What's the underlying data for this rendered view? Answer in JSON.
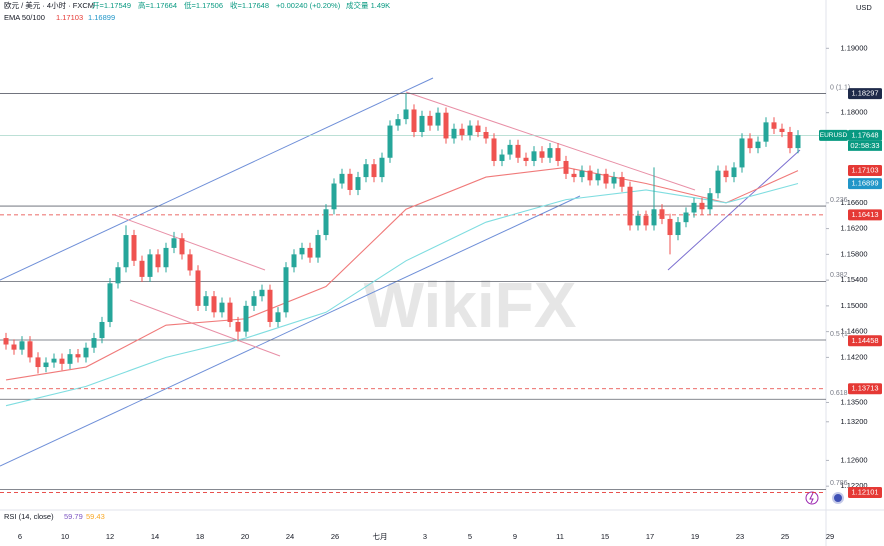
{
  "header": {
    "symbol": "欧元 / 美元 · 4小时 · FXCM",
    "open": "开=1.17549",
    "high": "高=1.17664",
    "low": "低=1.17506",
    "close": "收=1.17648",
    "change": "+0.00240 (+0.20%)",
    "volume": "成交量 1.49K",
    "ema_label": "EMA 50/100",
    "ema50_value": "1.17103",
    "ema100_value": "1.16899",
    "rsi_label": "RSI (14, close)",
    "rsi_value": "59.79",
    "rsi_ma_value": "59.43",
    "watermark": "WikiFX"
  },
  "chart_data": {
    "type": "candlestick",
    "currency": "USD",
    "symbol_tag": "EURUSD",
    "countdown": "02:58:33",
    "categories": [
      "6",
      "10",
      "12",
      "14",
      "18",
      "20",
      "24",
      "26",
      "七月",
      "3",
      "5",
      "9",
      "11",
      "15",
      "17",
      "19",
      "23",
      "25",
      "29"
    ],
    "up_color": "#26a69a",
    "down_color": "#ef5350",
    "grid": false,
    "ylim": [
      1.1183,
      1.1975
    ],
    "yticks": [
      {
        "value": 1.19,
        "label": "1.19000"
      },
      {
        "value": 1.18,
        "label": "1.18000"
      },
      {
        "value": 1.166,
        "label": "1.16600"
      },
      {
        "value": 1.162,
        "label": "1.16200"
      },
      {
        "value": 1.158,
        "label": "1.15800"
      },
      {
        "value": 1.154,
        "label": "1.15400"
      },
      {
        "value": 1.15,
        "label": "1.15000"
      },
      {
        "value": 1.146,
        "label": "1.14600"
      },
      {
        "value": 1.142,
        "label": "1.14200"
      },
      {
        "value": 1.135,
        "label": "1.13500"
      },
      {
        "value": 1.132,
        "label": "1.13200"
      },
      {
        "value": 1.126,
        "label": "1.12600"
      },
      {
        "value": 1.122,
        "label": "1.12200"
      }
    ],
    "open": [
      1.145,
      1.144,
      1.1432,
      1.1445,
      1.142,
      1.1405,
      1.1412,
      1.1418,
      1.141,
      1.1425,
      1.142,
      1.1435,
      1.145,
      1.1475,
      1.1535,
      1.156,
      1.161,
      1.157,
      1.1545,
      1.158,
      1.156,
      1.159,
      1.1605,
      1.158,
      1.1555,
      1.15,
      1.1515,
      1.149,
      1.1505,
      1.1475,
      1.146,
      1.15,
      1.1515,
      1.1525,
      1.1475,
      1.149,
      1.156,
      1.158,
      1.159,
      1.1575,
      1.161,
      1.165,
      1.169,
      1.1705,
      1.168,
      1.17,
      1.172,
      1.17,
      1.173,
      1.178,
      1.179,
      1.1805,
      1.177,
      1.1795,
      1.178,
      1.18,
      1.176,
      1.1775,
      1.1765,
      1.178,
      1.177,
      1.176,
      1.1725,
      1.1735,
      1.175,
      1.173,
      1.1725,
      1.174,
      1.173,
      1.1745,
      1.1725,
      1.1705,
      1.17,
      1.171,
      1.1695,
      1.1705,
      1.169,
      1.17,
      1.1685,
      1.1625,
      1.164,
      1.1625,
      1.165,
      1.1635,
      1.161,
      1.163,
      1.1645,
      1.166,
      1.165,
      1.1675,
      1.171,
      1.17,
      1.1715,
      1.176,
      1.1745,
      1.1755,
      1.1785,
      1.1775,
      1.177,
      1.1745
    ],
    "high": [
      1.1458,
      1.1448,
      1.1453,
      1.1453,
      1.1428,
      1.142,
      1.1426,
      1.1426,
      1.1433,
      1.1433,
      1.1443,
      1.1458,
      1.1483,
      1.1543,
      1.1568,
      1.1625,
      1.1618,
      1.1578,
      1.1588,
      1.1588,
      1.1598,
      1.1615,
      1.1613,
      1.1588,
      1.1563,
      1.1523,
      1.1523,
      1.1513,
      1.1513,
      1.1483,
      1.1508,
      1.1523,
      1.1533,
      1.1533,
      1.1498,
      1.1568,
      1.1588,
      1.1598,
      1.1598,
      1.1618,
      1.1658,
      1.1698,
      1.1713,
      1.1713,
      1.1708,
      1.1728,
      1.1728,
      1.1738,
      1.1788,
      1.1798,
      1.183,
      1.1813,
      1.1803,
      1.1803,
      1.1808,
      1.1808,
      1.1783,
      1.1783,
      1.1788,
      1.1788,
      1.1778,
      1.1768,
      1.1743,
      1.1758,
      1.1758,
      1.1738,
      1.1748,
      1.1748,
      1.1753,
      1.1753,
      1.1733,
      1.1713,
      1.1718,
      1.1718,
      1.1713,
      1.1713,
      1.1708,
      1.1708,
      1.1693,
      1.1648,
      1.1648,
      1.1715,
      1.1658,
      1.1643,
      1.1638,
      1.1653,
      1.1668,
      1.1668,
      1.1683,
      1.1718,
      1.1718,
      1.1723,
      1.1768,
      1.1768,
      1.1763,
      1.1793,
      1.1793,
      1.1783,
      1.1778,
      1.1773
    ],
    "low": [
      1.1432,
      1.1424,
      1.1424,
      1.1412,
      1.1395,
      1.1397,
      1.1404,
      1.14,
      1.1402,
      1.1412,
      1.1412,
      1.1427,
      1.1442,
      1.1467,
      1.1527,
      1.1552,
      1.1562,
      1.1537,
      1.1537,
      1.1552,
      1.1552,
      1.1582,
      1.1572,
      1.1547,
      1.1492,
      1.1492,
      1.1482,
      1.1482,
      1.1467,
      1.1445,
      1.1452,
      1.1492,
      1.1507,
      1.1467,
      1.1467,
      1.1482,
      1.1552,
      1.1572,
      1.1567,
      1.1567,
      1.1602,
      1.1642,
      1.1682,
      1.1672,
      1.1672,
      1.1692,
      1.1692,
      1.1692,
      1.1722,
      1.1772,
      1.1782,
      1.1762,
      1.1762,
      1.1772,
      1.1772,
      1.1752,
      1.1752,
      1.1757,
      1.1757,
      1.1762,
      1.1752,
      1.1717,
      1.1717,
      1.1727,
      1.1722,
      1.1717,
      1.1717,
      1.1722,
      1.1722,
      1.1717,
      1.1697,
      1.1692,
      1.1692,
      1.1687,
      1.1687,
      1.1682,
      1.1682,
      1.1677,
      1.1617,
      1.1617,
      1.1617,
      1.1617,
      1.1627,
      1.158,
      1.1602,
      1.1622,
      1.1637,
      1.1642,
      1.1642,
      1.1667,
      1.1692,
      1.1692,
      1.1707,
      1.1737,
      1.1737,
      1.1747,
      1.1767,
      1.1762,
      1.1737,
      1.1737
    ],
    "close": [
      1.144,
      1.1432,
      1.1445,
      1.142,
      1.1405,
      1.1412,
      1.1418,
      1.141,
      1.1425,
      1.142,
      1.1435,
      1.145,
      1.1475,
      1.1535,
      1.156,
      1.161,
      1.157,
      1.1545,
      1.158,
      1.156,
      1.159,
      1.1605,
      1.158,
      1.1555,
      1.15,
      1.1515,
      1.149,
      1.1505,
      1.1475,
      1.146,
      1.15,
      1.1515,
      1.1525,
      1.1475,
      1.149,
      1.156,
      1.158,
      1.159,
      1.1575,
      1.161,
      1.165,
      1.169,
      1.1705,
      1.168,
      1.17,
      1.172,
      1.17,
      1.173,
      1.178,
      1.179,
      1.1805,
      1.177,
      1.1795,
      1.178,
      1.18,
      1.176,
      1.1775,
      1.1765,
      1.178,
      1.177,
      1.176,
      1.1725,
      1.1735,
      1.175,
      1.173,
      1.1725,
      1.174,
      1.173,
      1.1745,
      1.1725,
      1.1705,
      1.17,
      1.171,
      1.1695,
      1.1705,
      1.169,
      1.17,
      1.1685,
      1.1625,
      1.164,
      1.1625,
      1.165,
      1.1635,
      1.161,
      1.163,
      1.1645,
      1.166,
      1.165,
      1.1675,
      1.171,
      1.17,
      1.1715,
      1.176,
      1.1745,
      1.1755,
      1.1785,
      1.1775,
      1.177,
      1.1745,
      1.1765
    ],
    "ema": [
      {
        "color": "#f07a7a",
        "x": [
          0,
          10,
          20,
          30,
          40,
          50,
          60,
          70,
          80,
          90,
          99
        ],
        "values": [
          1.1385,
          1.1405,
          1.147,
          1.148,
          1.153,
          1.165,
          1.17,
          1.1715,
          1.169,
          1.166,
          1.171
        ]
      },
      {
        "color": "#7fdde0",
        "x": [
          0,
          10,
          20,
          30,
          40,
          50,
          60,
          70,
          80,
          90,
          99
        ],
        "values": [
          1.1345,
          1.1375,
          1.142,
          1.145,
          1.149,
          1.157,
          1.163,
          1.1665,
          1.168,
          1.166,
          1.169
        ]
      }
    ],
    "levels": [
      {
        "value": 1.18297,
        "color": "#1e2a4a",
        "line": "solid"
      },
      {
        "value": 1.17648,
        "color": "#089981",
        "line": "current"
      },
      {
        "value": 1.17103,
        "color": "#e53935",
        "line": "none"
      },
      {
        "value": 1.16899,
        "color": "#2196c8",
        "line": "none"
      },
      {
        "value": 1.16413,
        "color": "#e53935",
        "line": "dashed"
      },
      {
        "value": 1.14458,
        "color": "#e53935",
        "line": "none"
      },
      {
        "value": 1.13713,
        "color": "#e53935",
        "line": "dashed"
      },
      {
        "value": 1.12101,
        "color": "#e53935",
        "line": "dashed"
      }
    ],
    "fib": [
      {
        "ratio": "0 (1.1)",
        "price": 1.18297
      },
      {
        "ratio": 0.236,
        "price": 1.1655
      },
      {
        "ratio": 0.382,
        "price": 1.1538
      },
      {
        "ratio": "0.5 (1.",
        "price": 1.1447
      },
      {
        "ratio": 0.618,
        "price": 1.1355
      },
      {
        "ratio": 0.786,
        "price": 1.1215
      }
    ]
  }
}
